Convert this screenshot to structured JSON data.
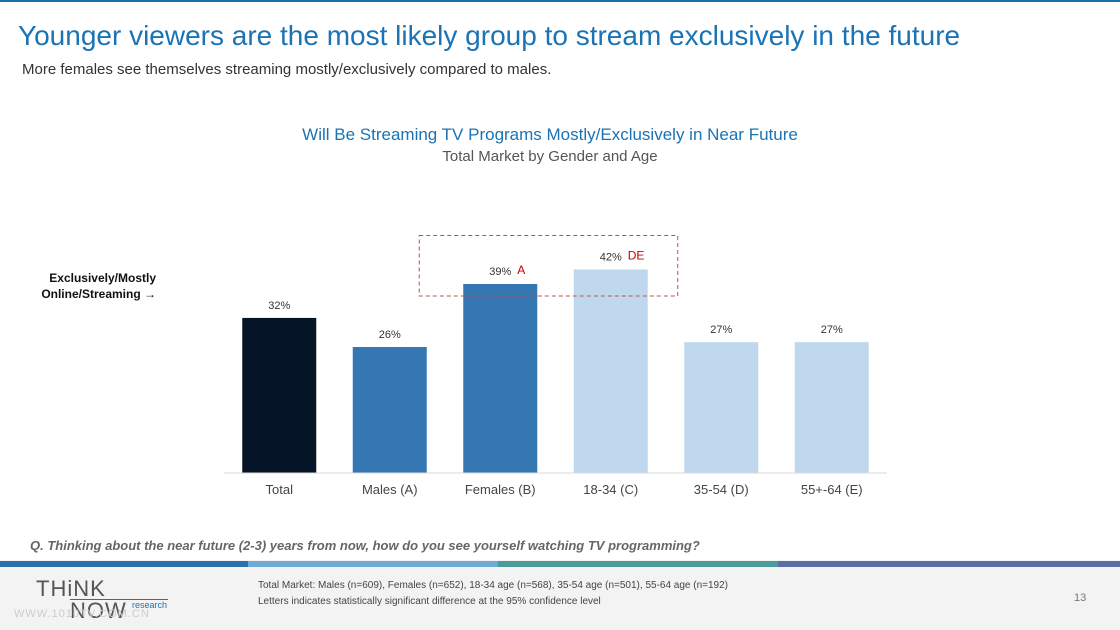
{
  "header": {
    "title": "Younger viewers are the most likely group to stream exclusively in the future",
    "subtitle": "More females see themselves streaming mostly/exclusively compared to males."
  },
  "side_label": "Exclusively/Mostly Online/Streaming →",
  "question": "Q. Thinking about the near future (2-3) years from now, how do you see yourself watching TV programming?",
  "footer": {
    "logo_top": "THiNK",
    "logo_bottom": "NOW",
    "logo_tag": "research",
    "logo_url": "WWW.1010TV.COM.CN",
    "note1": "Total Market: Males (n=609), Females (n=652), 18-34 age (n=568), 35-54 age (n=501), 55-64 age (n=192)",
    "note2": "Letters indicates statistically significant difference at the 95% confidence level",
    "page_number": "13",
    "stripe_colors": [
      "#2e6fad",
      "#6fa9d6",
      "#4c9a9a",
      "#5a6fa8"
    ]
  },
  "chart_data": {
    "type": "bar",
    "title": "Will Be Streaming TV Programs Mostly/Exclusively in Near Future",
    "subtitle": "Total Market by Gender and Age",
    "categories": [
      "Total",
      "Males (A)",
      "Females (B)",
      "18-34 (C)",
      "35-54 (D)",
      "55+-64 (E)"
    ],
    "values": [
      32,
      26,
      39,
      42,
      27,
      27
    ],
    "value_labels": [
      "32%",
      "26%",
      "39%",
      "42%",
      "27%",
      "27%"
    ],
    "significance": [
      "",
      "",
      "A",
      "DE",
      "",
      ""
    ],
    "colors": [
      "#061428",
      "#3577b2",
      "#3577b2",
      "#c0d8ee",
      "#c0d8ee",
      "#c0d8ee"
    ],
    "highlight_box": {
      "categories": [
        "Females (B)",
        "18-34 (C)"
      ],
      "color": "#c0504d"
    },
    "significance_color": "#c00000",
    "ylim": [
      0,
      50
    ],
    "grid": false,
    "legend": "none"
  }
}
